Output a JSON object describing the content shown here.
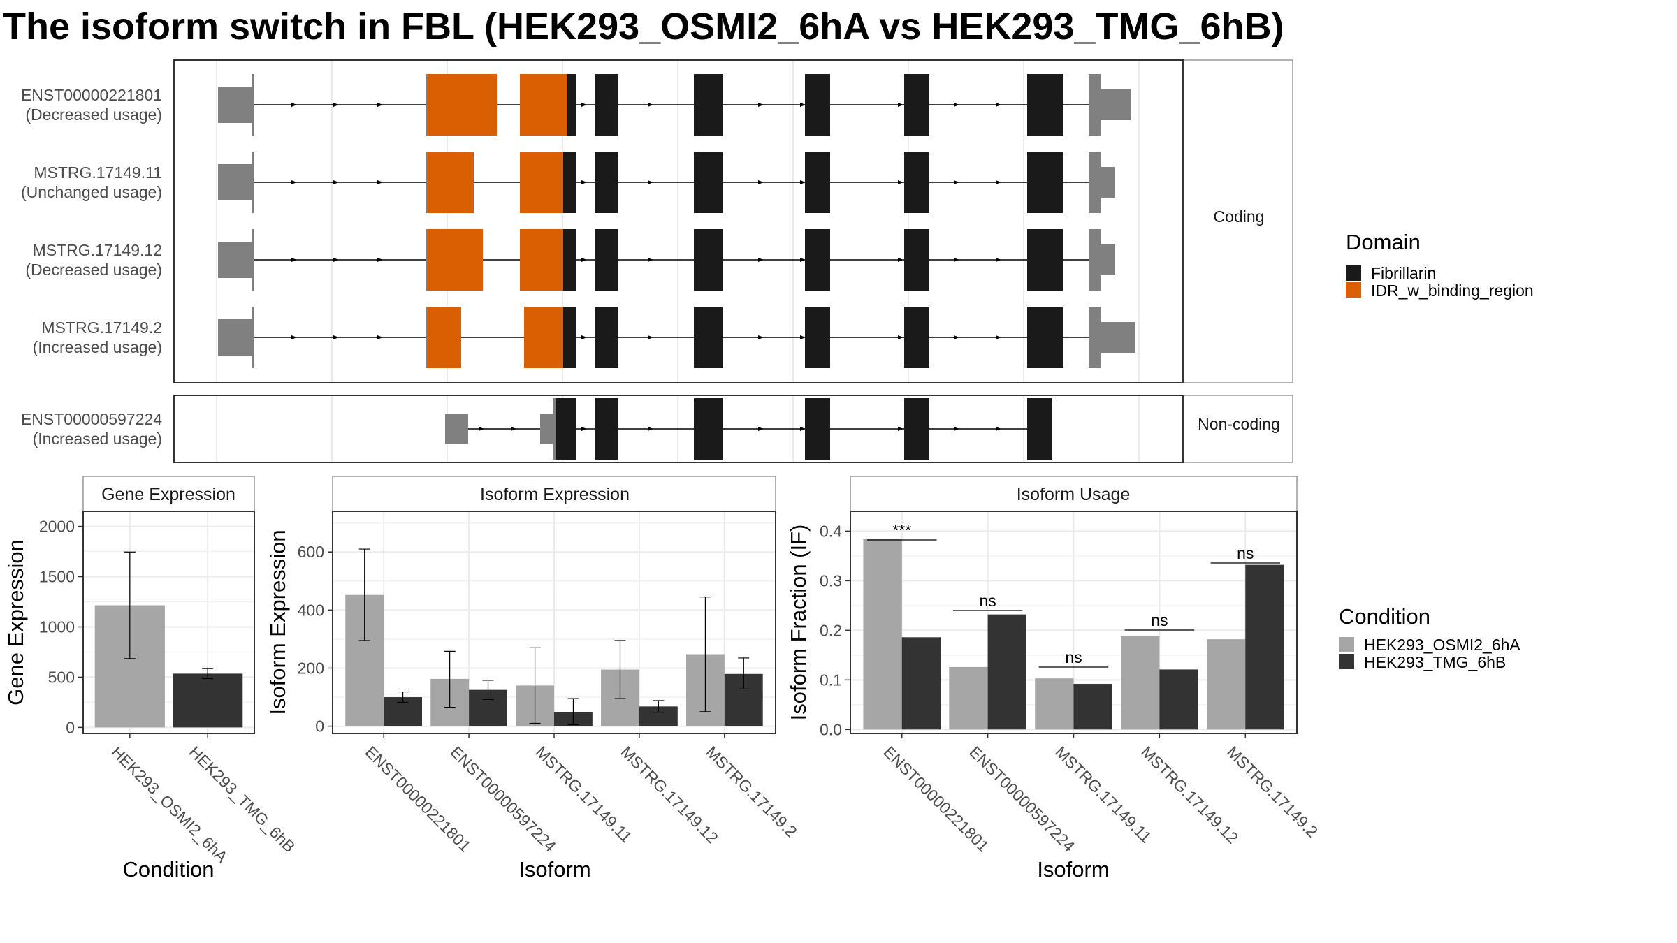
{
  "title": "The isoform switch in FBL (HEK293_OSMI2_6hA vs HEK293_TMG_6hB)",
  "colors": {
    "fibrillarin": "#1a1a1a",
    "idr": "#d95f02",
    "utr": "#808080",
    "cond_a": "#a6a6a6",
    "cond_b": "#333333",
    "grid": "#ebebeb",
    "panel_border": "#333333",
    "strip_border": "#999999"
  },
  "structure": {
    "facets": [
      "Coding",
      "Non-coding"
    ],
    "isoforms": [
      {
        "id": "ENST00000221801",
        "usage": "(Decreased usage)",
        "facet": "Coding"
      },
      {
        "id": "MSTRG.17149.11",
        "usage": "(Unchanged usage)",
        "facet": "Coding"
      },
      {
        "id": "MSTRG.17149.12",
        "usage": "(Decreased usage)",
        "facet": "Coding"
      },
      {
        "id": "MSTRG.17149.2",
        "usage": "(Increased usage)",
        "facet": "Coding"
      },
      {
        "id": "ENST00000597224",
        "usage": "(Increased usage)",
        "facet": "Non-coding"
      }
    ]
  },
  "legend_domain": {
    "title": "Domain",
    "items": [
      {
        "label": "Fibrillarin",
        "color": "#1a1a1a"
      },
      {
        "label": "IDR_w_binding_region",
        "color": "#d95f02"
      }
    ]
  },
  "legend_condition": {
    "title": "Condition",
    "items": [
      {
        "label": "HEK293_OSMI2_6hA",
        "color": "#a6a6a6"
      },
      {
        "label": "HEK293_TMG_6hB",
        "color": "#333333"
      }
    ]
  },
  "chart_data": [
    {
      "type": "bar",
      "title": "Gene Expression",
      "xlabel": "Condition",
      "ylabel": "Gene Expression",
      "categories": [
        "HEK293_OSMI2_6hA",
        "HEK293_TMG_6hB"
      ],
      "values": [
        1215,
        535
      ],
      "error_low": [
        685,
        485
      ],
      "error_high": [
        1745,
        585
      ],
      "ylim": [
        -60,
        2150
      ],
      "yticks": [
        0,
        500,
        1000,
        1500,
        2000
      ],
      "grid": true
    },
    {
      "type": "bar",
      "title": "Isoform Expression",
      "xlabel": "Isoform",
      "ylabel": "Isoform Expression",
      "categories": [
        "ENST00000221801",
        "ENST00000597224",
        "MSTRG.17149.11",
        "MSTRG.17149.12",
        "MSTRG.17149.2"
      ],
      "series": [
        {
          "name": "HEK293_OSMI2_6hA",
          "values": [
            452,
            163,
            140,
            195,
            248
          ],
          "error_low": [
            295,
            65,
            10,
            95,
            50
          ],
          "error_high": [
            610,
            258,
            270,
            295,
            445
          ]
        },
        {
          "name": "HEK293_TMG_6hB",
          "values": [
            100,
            125,
            48,
            68,
            180
          ],
          "error_low": [
            82,
            92,
            5,
            48,
            128
          ],
          "error_high": [
            118,
            158,
            95,
            88,
            235
          ]
        }
      ],
      "ylim": [
        -25,
        740
      ],
      "yticks": [
        0,
        200,
        400,
        600
      ],
      "grid": true
    },
    {
      "type": "bar",
      "title": "Isoform Usage",
      "xlabel": "Isoform",
      "ylabel": "Isoform Fraction (IF)",
      "categories": [
        "ENST00000221801",
        "ENST00000597224",
        "MSTRG.17149.11",
        "MSTRG.17149.12",
        "MSTRG.17149.2"
      ],
      "series": [
        {
          "name": "HEK293_OSMI2_6hA",
          "values": [
            0.384,
            0.126,
            0.103,
            0.188,
            0.182
          ]
        },
        {
          "name": "HEK293_TMG_6hB",
          "values": [
            0.186,
            0.232,
            0.092,
            0.121,
            0.332
          ]
        }
      ],
      "significance": [
        "***",
        "ns",
        "ns",
        "ns",
        "ns"
      ],
      "ylim": [
        -0.008,
        0.44
      ],
      "yticks": [
        0.0,
        0.1,
        0.2,
        0.3,
        0.4
      ],
      "ytick_labels": [
        "0.0",
        "0.1",
        "0.2",
        "0.3",
        "0.4"
      ],
      "grid": true
    }
  ]
}
